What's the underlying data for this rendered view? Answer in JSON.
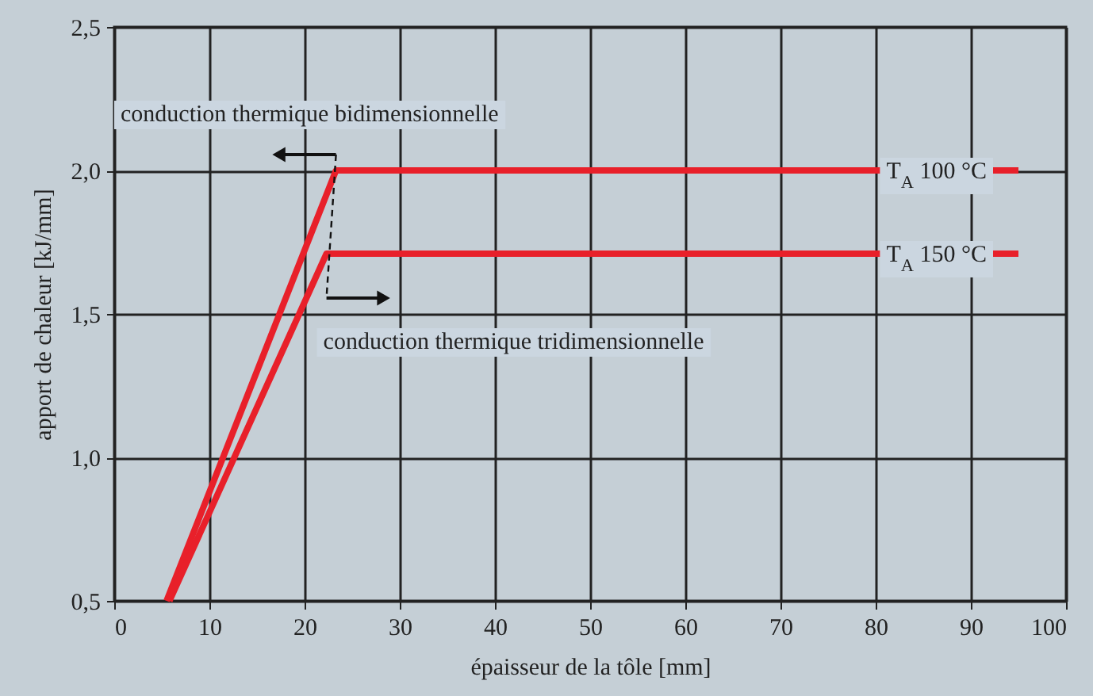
{
  "chart_data": {
    "type": "line",
    "xlabel": "épaisseur de la tôle [mm]",
    "ylabel": "apport de chaleur [kJ/mm]",
    "series": [
      {
        "name": "T$_{A}$ 100 °C",
        "color": "#e8202a",
        "x": [
          5.5,
          23.3,
          95
        ],
        "values": [
          0.5,
          2.0,
          2.0
        ]
      },
      {
        "name": "T$_{A}$ 150 °C",
        "color": "#e8202a",
        "x": [
          5.8,
          22.3,
          95
        ],
        "values": [
          0.5,
          1.71,
          1.71
        ]
      }
    ],
    "xlim": [
      0,
      100
    ],
    "xticks": [
      0,
      10,
      20,
      30,
      40,
      50,
      60,
      70,
      80,
      90,
      100
    ],
    "ylim": [
      0.5,
      2.5
    ],
    "yticks": [
      {
        "value": 0.5,
        "label": "0,5"
      },
      {
        "value": 1.0,
        "label": "1,0"
      },
      {
        "value": 1.5,
        "label": "1,5"
      },
      {
        "value": 2.0,
        "label": "2,0"
      },
      {
        "value": 2.5,
        "label": "2,5"
      }
    ],
    "grid": true,
    "legend": false,
    "annotations": [
      "conduction thermique bidimensionnelle",
      "conduction thermique tridimensionnelle"
    ]
  }
}
